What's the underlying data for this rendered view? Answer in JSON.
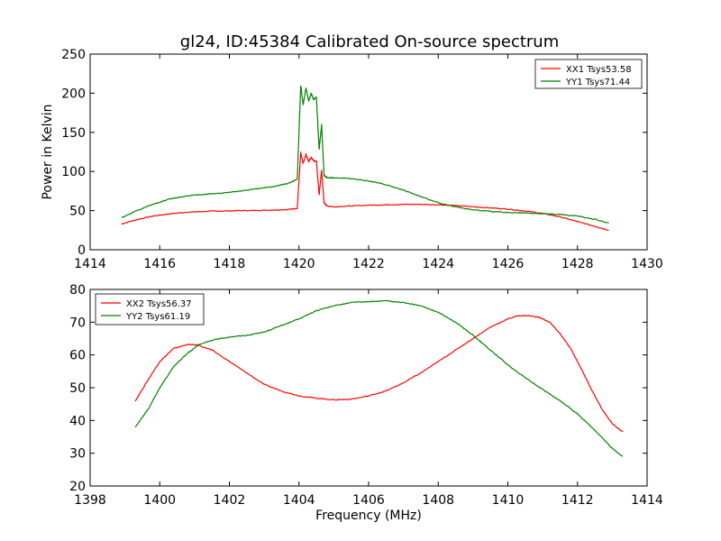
{
  "figure": {
    "title": "gl24, ID:45384 Calibrated On-source spectrum"
  },
  "chart_data": [
    {
      "type": "line",
      "title": "gl24, ID:45384 Calibrated On-source spectrum",
      "xlabel": "",
      "ylabel": "Power in Kelvin",
      "xlim": [
        1414,
        1430
      ],
      "ylim": [
        0,
        250
      ],
      "xticks": [
        "1414",
        "1416",
        "1418",
        "1420",
        "1422",
        "1424",
        "1426",
        "1428",
        "1430"
      ],
      "yticks": [
        "0",
        "50",
        "100",
        "150",
        "200",
        "250"
      ],
      "grid": false,
      "legend": "top-right",
      "series": [
        {
          "name": "XX1 Tsys53.58",
          "color": "#ff0000",
          "x": [
            1414.9,
            1415.3,
            1415.8,
            1416.3,
            1416.8,
            1417.3,
            1417.8,
            1418.3,
            1418.8,
            1419.3,
            1419.7,
            1419.95,
            1420.05,
            1420.12,
            1420.2,
            1420.28,
            1420.35,
            1420.42,
            1420.5,
            1420.58,
            1420.65,
            1420.72,
            1420.8,
            1421.0,
            1421.5,
            1422.0,
            1422.5,
            1423.0,
            1423.5,
            1424.0,
            1424.5,
            1425.0,
            1425.5,
            1426.0,
            1426.5,
            1427.0,
            1427.5,
            1428.0,
            1428.5,
            1428.9
          ],
          "y": [
            33,
            38,
            43,
            46,
            48,
            49,
            49.5,
            50,
            50.3,
            50.8,
            51.5,
            53,
            124,
            110,
            122,
            113,
            118,
            114,
            113,
            70,
            102,
            60,
            56,
            55,
            56,
            57,
            57.5,
            58,
            58,
            57.5,
            56.5,
            55,
            53.5,
            52,
            49.5,
            46.5,
            42,
            36,
            30,
            25
          ]
        },
        {
          "name": "YY1 Tsys71.44",
          "color": "#008000",
          "x": [
            1414.9,
            1415.3,
            1415.8,
            1416.3,
            1416.8,
            1417.3,
            1417.8,
            1418.3,
            1418.8,
            1419.3,
            1419.7,
            1419.95,
            1420.05,
            1420.12,
            1420.2,
            1420.28,
            1420.35,
            1420.42,
            1420.5,
            1420.58,
            1420.65,
            1420.72,
            1420.8,
            1421.0,
            1421.5,
            1422.0,
            1422.5,
            1423.0,
            1423.5,
            1424.0,
            1424.5,
            1425.0,
            1425.5,
            1426.0,
            1426.5,
            1427.0,
            1427.5,
            1428.0,
            1428.5,
            1428.9
          ],
          "y": [
            41,
            49,
            58,
            65,
            69,
            71,
            72.5,
            75,
            78,
            81,
            85,
            90,
            210,
            185,
            207,
            190,
            200,
            192,
            195,
            128,
            160,
            95,
            92,
            92,
            91,
            88,
            83,
            76,
            68,
            60,
            55,
            51,
            49,
            47.5,
            47,
            46,
            45,
            43,
            39,
            34
          ]
        }
      ]
    },
    {
      "type": "line",
      "title": "",
      "xlabel": "Frequency (MHz)",
      "ylabel": "",
      "xlim": [
        1398,
        1414
      ],
      "ylim": [
        20,
        80
      ],
      "xticks": [
        "1398",
        "1400",
        "1402",
        "1404",
        "1406",
        "1408",
        "1410",
        "1412",
        "1414"
      ],
      "yticks": [
        "20",
        "30",
        "40",
        "50",
        "60",
        "70",
        "80"
      ],
      "grid": false,
      "legend": "top-left",
      "series": [
        {
          "name": "XX2 Tsys56.37",
          "color": "#ff0000",
          "x": [
            1399.3,
            1399.7,
            1400.0,
            1400.4,
            1400.8,
            1401.1,
            1401.5,
            1402.0,
            1402.5,
            1403.0,
            1403.5,
            1404.0,
            1404.5,
            1405.0,
            1405.5,
            1406.0,
            1406.5,
            1407.0,
            1407.5,
            1408.0,
            1408.5,
            1409.0,
            1409.5,
            1410.0,
            1410.3,
            1410.6,
            1410.9,
            1411.2,
            1411.5,
            1411.8,
            1412.1,
            1412.4,
            1412.7,
            1413.0,
            1413.3
          ],
          "y": [
            46,
            53,
            58,
            62,
            63.2,
            63,
            61.5,
            58,
            54.5,
            51,
            49,
            47.5,
            46.8,
            46.3,
            46.5,
            47.5,
            49,
            51.5,
            54.5,
            58,
            61.5,
            65,
            68.5,
            71,
            72,
            72,
            71.5,
            70,
            66.5,
            62,
            56,
            49.5,
            43.5,
            39,
            36.5
          ]
        },
        {
          "name": "YY2 Tsys61.19",
          "color": "#008000",
          "x": [
            1399.3,
            1399.7,
            1400.0,
            1400.4,
            1400.8,
            1401.1,
            1401.5,
            1402.0,
            1402.5,
            1403.0,
            1403.5,
            1404.0,
            1404.5,
            1405.0,
            1405.5,
            1406.0,
            1406.5,
            1407.0,
            1407.5,
            1408.0,
            1408.5,
            1409.0,
            1409.5,
            1410.0,
            1410.5,
            1411.0,
            1411.5,
            1412.0,
            1412.5,
            1413.0,
            1413.3
          ],
          "y": [
            38,
            44,
            50,
            56.5,
            60.5,
            63,
            64.5,
            65.5,
            66,
            67,
            69,
            71,
            73.5,
            75,
            76,
            76.3,
            76.5,
            76,
            75,
            73,
            70,
            66,
            61.5,
            57,
            53,
            49.5,
            46,
            42,
            37,
            31.5,
            29
          ]
        }
      ]
    }
  ]
}
